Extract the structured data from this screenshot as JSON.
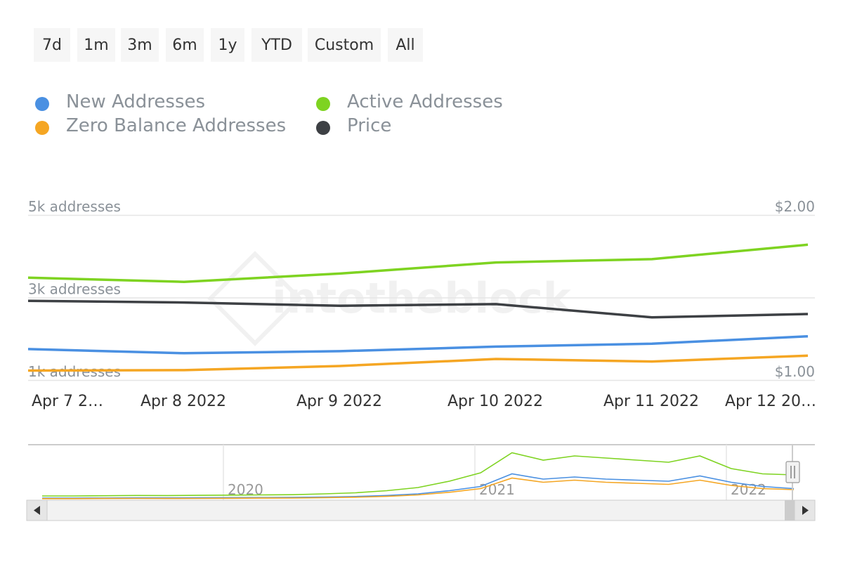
{
  "range_selector": {
    "buttons": [
      {
        "label": "7d",
        "name": "range-7d-button"
      },
      {
        "label": "1m",
        "name": "range-1m-button"
      },
      {
        "label": "3m",
        "name": "range-3m-button"
      },
      {
        "label": "6m",
        "name": "range-6m-button"
      },
      {
        "label": "1y",
        "name": "range-1y-button"
      },
      {
        "label": "YTD",
        "name": "range-ytd-button"
      },
      {
        "label": "Custom",
        "name": "range-custom-button"
      },
      {
        "label": "All",
        "name": "range-all-button"
      }
    ]
  },
  "legend": {
    "items": [
      {
        "label": "New Addresses",
        "color": "#4a90e2"
      },
      {
        "label": "Zero Balance Addresses",
        "color": "#f5a623"
      },
      {
        "label": "Active Addresses",
        "color": "#7ed321"
      },
      {
        "label": "Price",
        "color": "#3d4044"
      }
    ]
  },
  "watermark": "intotheblock",
  "chart_data": {
    "type": "line",
    "x": [
      "Apr 7 2022",
      "Apr 8 2022",
      "Apr 9 2022",
      "Apr 10 2022",
      "Apr 11 2022",
      "Apr 12 2022"
    ],
    "x_tick_labels": [
      "Apr 7 2…",
      "Apr 8 2022",
      "Apr 9 2022",
      "Apr 10 2022",
      "Apr 11 2022",
      "Apr 12 20…"
    ],
    "y_left": {
      "tick_labels": [
        "5k addresses",
        "3k addresses",
        "1k addresses"
      ],
      "ticks": [
        5000,
        3000,
        1000
      ],
      "ylim": [
        1000,
        5000
      ]
    },
    "y_right": {
      "tick_labels": [
        "$2.00",
        "$1.00"
      ],
      "ticks": [
        2.0,
        1.0
      ],
      "ylim": [
        1.0,
        2.0
      ]
    },
    "series": [
      {
        "name": "Active Addresses",
        "axis": "left",
        "color": "#7ed321",
        "values": [
          3480,
          3380,
          3580,
          3850,
          3930,
          4280
        ]
      },
      {
        "name": "Price",
        "axis": "right",
        "color": "#3d4044",
        "values": [
          1.48,
          1.47,
          1.45,
          1.46,
          1.38,
          1.4
        ]
      },
      {
        "name": "New Addresses",
        "axis": "left",
        "color": "#4a90e2",
        "values": [
          1750,
          1650,
          1700,
          1810,
          1880,
          2060
        ]
      },
      {
        "name": "Zero Balance Addresses",
        "axis": "left",
        "color": "#f5a623",
        "values": [
          1230,
          1240,
          1340,
          1510,
          1450,
          1590
        ]
      }
    ],
    "grid": true,
    "navigator": {
      "year_labels": [
        "2020",
        "2021",
        "2022"
      ],
      "series": [
        {
          "name": "Active Addresses",
          "color": "#7ed321",
          "values": [
            40,
            40,
            42,
            45,
            44,
            46,
            48,
            50,
            52,
            60,
            70,
            90,
            120,
            180,
            260,
            450,
            380,
            420,
            400,
            380,
            360,
            420,
            300,
            250,
            240
          ]
        },
        {
          "name": "New Addresses",
          "color": "#4a90e2",
          "values": [
            20,
            20,
            21,
            22,
            22,
            23,
            24,
            25,
            26,
            30,
            35,
            45,
            60,
            90,
            130,
            250,
            200,
            220,
            200,
            190,
            180,
            230,
            170,
            130,
            110
          ]
        },
        {
          "name": "Zero Balance Addresses",
          "color": "#f5a623",
          "values": [
            15,
            15,
            16,
            17,
            16,
            17,
            18,
            19,
            20,
            24,
            28,
            36,
            50,
            75,
            110,
            210,
            170,
            190,
            170,
            160,
            150,
            190,
            140,
            110,
            100
          ]
        }
      ]
    }
  }
}
